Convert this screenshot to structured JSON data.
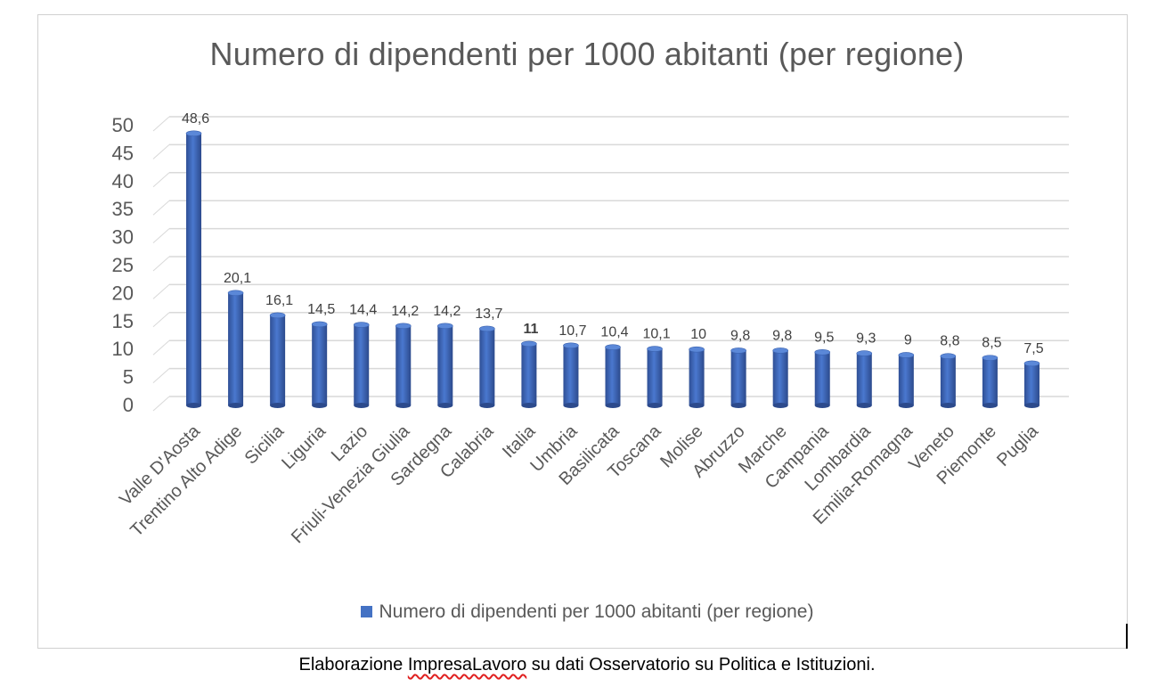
{
  "chart_data": {
    "type": "bar",
    "title": "Numero di dipendenti per 1000 abitanti (per regione)",
    "categories": [
      "Valle D'Aosta",
      "Trentino Alto Adige",
      "Sicilia",
      "Liguria",
      "Lazio",
      "Friuli-Venezia Giulia",
      "Sardegna",
      "Calabria",
      "Italia",
      "Umbria",
      "Basilicata",
      "Toscana",
      "Molise",
      "Abruzzo",
      "Marche",
      "Campania",
      "Lombardia",
      "Emilia-Romagna",
      "Veneto",
      "Piemonte",
      "Puglia"
    ],
    "series": [
      {
        "name": "Numero di dipendenti per 1000 abitanti (per regione)",
        "values": [
          48.6,
          20.1,
          16.1,
          14.5,
          14.4,
          14.2,
          14.2,
          13.7,
          11,
          10.7,
          10.4,
          10.1,
          10,
          9.8,
          9.8,
          9.5,
          9.3,
          9,
          8.8,
          8.5,
          7.5
        ]
      }
    ],
    "data_labels": [
      "48,6",
      "20,1",
      "16,1",
      "14,5",
      "14,4",
      "14,2",
      "14,2",
      "13,7",
      "11",
      "10,7",
      "10,4",
      "10,1",
      "10",
      "9,8",
      "9,8",
      "9,5",
      "9,3",
      "9",
      "8,8",
      "8,5",
      "7,5"
    ],
    "y_ticks": [
      0,
      5,
      10,
      15,
      20,
      25,
      30,
      35,
      40,
      45,
      50
    ],
    "ylim": [
      0,
      50
    ],
    "xlabel": "",
    "ylabel": "",
    "grid": true,
    "legend_position": "bottom",
    "color": "#4472c4"
  },
  "caption": {
    "before": "Elaborazione ",
    "underlined": "ImpresaLavoro",
    "after": " su dati Osservatorio su Politica e Istituzioni."
  }
}
